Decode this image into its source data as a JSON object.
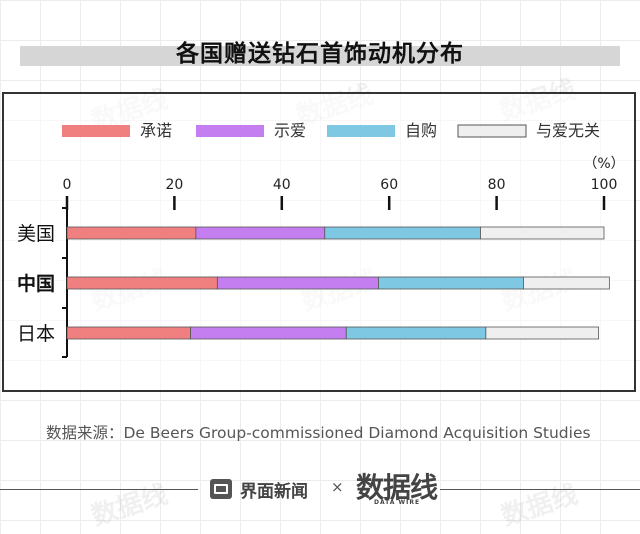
{
  "title": "各国赠送钻石首饰动机分布",
  "source": "数据来源：De Beers Group-commissioned Diamond Acquisition Studies",
  "footer": {
    "publisher": "界面新闻",
    "separator": "×",
    "brand": "数据线",
    "brand_sub": "DATA WIRE"
  },
  "watermark": "数据线",
  "colors": {
    "承诺": "#f08080",
    "示爱": "#c47ef0",
    "自购": "#7ec8e3",
    "与爱无关": "#efefef"
  },
  "chart_data": {
    "type": "bar",
    "orientation": "horizontal",
    "stacked": true,
    "unit": "（%）",
    "categories": [
      "美国",
      "中国",
      "日本"
    ],
    "highlight_category": "中国",
    "xlim": [
      0,
      100
    ],
    "xticks": [
      0,
      20,
      40,
      60,
      80,
      100
    ],
    "legend_position": "top",
    "grid": false,
    "series": [
      {
        "name": "承诺",
        "values": [
          24,
          28,
          23
        ]
      },
      {
        "name": "示爱",
        "values": [
          24,
          30,
          29
        ]
      },
      {
        "name": "自购",
        "values": [
          29,
          27,
          26
        ]
      },
      {
        "name": "与爱无关",
        "values": [
          23,
          16,
          21
        ]
      }
    ]
  }
}
